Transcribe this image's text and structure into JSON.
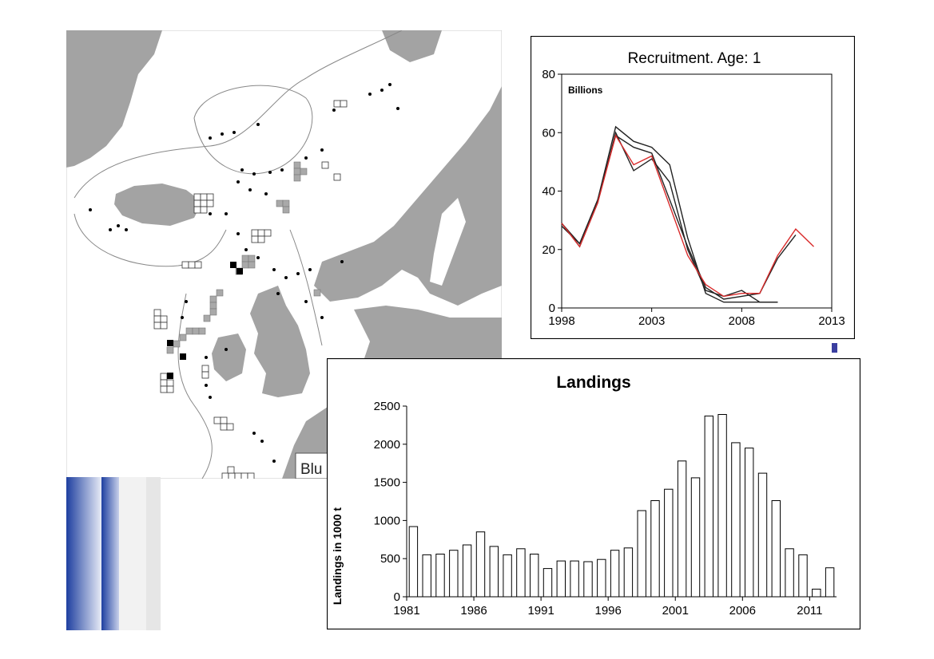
{
  "map": {
    "label": "Blu",
    "colors": {
      "sea": "#ffffff",
      "land": "#a3a3a3",
      "grey_square": "#a9a9a9",
      "black_square": "#000000"
    }
  },
  "decor": {
    "colors": {
      "blue": "#1e3fa0",
      "light": "#e8e8e8"
    }
  },
  "chart_data": [
    {
      "type": "line",
      "title": "Recruitment. Age: 1",
      "unit_label": "Billions",
      "xlabel": "",
      "ylabel": "",
      "xlim": [
        1998,
        2013
      ],
      "ylim": [
        0,
        80
      ],
      "xticks": [
        1998,
        2003,
        2008,
        2013
      ],
      "yticks": [
        0,
        20,
        40,
        60,
        80
      ],
      "grid": false,
      "series": [
        {
          "color": "#222222",
          "x": [
            1998,
            1999,
            2000,
            2001,
            2002,
            2003,
            2004,
            2005,
            2006,
            2007,
            2008,
            2009,
            2010
          ],
          "values": [
            28,
            22,
            37,
            62,
            57,
            55,
            49,
            24,
            5,
            2,
            2,
            2,
            2
          ]
        },
        {
          "color": "#222222",
          "x": [
            1998,
            1999,
            2000,
            2001,
            2002,
            2003,
            2004,
            2005,
            2006,
            2007,
            2008,
            2009,
            2010
          ],
          "values": [
            29,
            21,
            36,
            60,
            47,
            51,
            43,
            20,
            6,
            4,
            6,
            2,
            2
          ]
        },
        {
          "color": "#222222",
          "x": [
            1998,
            1999,
            2000,
            2001,
            2002,
            2003,
            2004,
            2005,
            2006,
            2007,
            2008,
            2009,
            2010,
            2011
          ],
          "values": [
            29,
            22,
            37,
            59,
            55,
            53,
            37,
            21,
            7,
            3,
            4,
            5,
            17,
            25
          ]
        },
        {
          "color": "#d92b2b",
          "x": [
            1998,
            1999,
            2000,
            2001,
            2002,
            2003,
            2004,
            2005,
            2006,
            2007,
            2008,
            2009,
            2010,
            2011,
            2012
          ],
          "values": [
            29,
            21,
            36,
            59,
            49,
            52,
            35,
            18,
            8,
            4,
            5,
            5,
            18,
            27,
            21
          ]
        }
      ]
    },
    {
      "type": "bar",
      "title": "Landings",
      "xlabel": "",
      "ylabel": "Landings in 1000 t",
      "ylim": [
        0,
        2500
      ],
      "yticks": [
        0,
        500,
        1000,
        1500,
        2000,
        2500
      ],
      "xticks": [
        1981,
        1986,
        1991,
        1996,
        2001,
        2006,
        2011
      ],
      "grid": false,
      "categories": [
        1981,
        1982,
        1983,
        1984,
        1985,
        1986,
        1987,
        1988,
        1989,
        1990,
        1991,
        1992,
        1993,
        1994,
        1995,
        1996,
        1997,
        1998,
        1999,
        2000,
        2001,
        2002,
        2003,
        2004,
        2005,
        2006,
        2007,
        2008,
        2009,
        2010,
        2011,
        2012
      ],
      "values": [
        920,
        550,
        560,
        610,
        680,
        850,
        660,
        550,
        630,
        560,
        370,
        470,
        470,
        460,
        490,
        610,
        640,
        1130,
        1260,
        1410,
        1780,
        1560,
        2370,
        2390,
        2020,
        1950,
        1620,
        1260,
        630,
        550,
        100,
        380
      ]
    }
  ]
}
